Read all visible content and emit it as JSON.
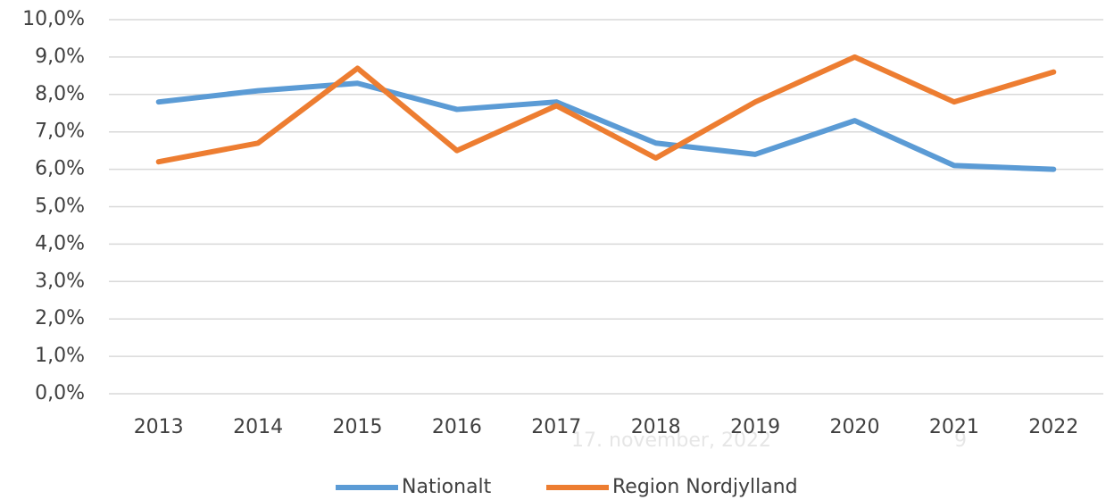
{
  "chart_data": {
    "type": "line",
    "categories": [
      "2013",
      "2014",
      "2015",
      "2016",
      "2017",
      "2018",
      "2019",
      "2020",
      "2021",
      "2022"
    ],
    "series": [
      {
        "name": "Nationalt",
        "color": "#5b9bd5",
        "values": [
          7.8,
          8.1,
          8.3,
          7.6,
          7.8,
          6.7,
          6.4,
          7.3,
          6.1,
          6.0
        ]
      },
      {
        "name": "Region Nordjylland",
        "color": "#ed7d31",
        "values": [
          6.2,
          6.7,
          8.7,
          6.5,
          7.7,
          6.3,
          7.8,
          9.0,
          7.8,
          8.6
        ]
      }
    ],
    "ylim": [
      0,
      10
    ],
    "yticks": [
      {
        "value": 0,
        "label": "0,0%"
      },
      {
        "value": 1,
        "label": "1,0%"
      },
      {
        "value": 2,
        "label": "2,0%"
      },
      {
        "value": 3,
        "label": "3,0%"
      },
      {
        "value": 4,
        "label": "4,0%"
      },
      {
        "value": 5,
        "label": "5,0%"
      },
      {
        "value": 6,
        "label": "6,0%"
      },
      {
        "value": 7,
        "label": "7,0%"
      },
      {
        "value": 8,
        "label": "8,0%"
      },
      {
        "value": 9,
        "label": "9,0%"
      },
      {
        "value": 10,
        "label": "10,0%"
      }
    ],
    "grid": true,
    "legend": "bottom"
  },
  "footer": {
    "date": "17. november, 2022",
    "page_number": "9"
  }
}
